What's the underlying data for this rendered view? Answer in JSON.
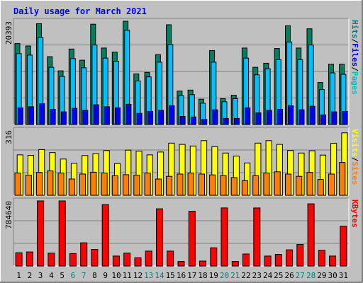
{
  "chart_data": {
    "type": "bar",
    "title": "Daily usage for March 2021",
    "title_color": "#0000ff",
    "background": "#c0c0c0",
    "plot_background": "#c0c0c0",
    "grid": true,
    "days": [
      1,
      2,
      3,
      4,
      5,
      6,
      7,
      8,
      9,
      10,
      11,
      12,
      13,
      14,
      15,
      16,
      17,
      18,
      19,
      20,
      21,
      22,
      23,
      24,
      25,
      26,
      27,
      28,
      29,
      30,
      31
    ],
    "weekend_days": [
      6,
      7,
      13,
      14,
      20,
      21,
      27,
      28
    ],
    "day_label_color": "#000000",
    "weekend_label_color": "#008080",
    "panels": [
      {
        "id": "hits",
        "ymax_label": "20393",
        "ymax": 20393,
        "side_labels": [
          {
            "text": "Hits",
            "color": "#008080"
          },
          {
            "text": "/",
            "color": "#000000"
          },
          {
            "text": "Files",
            "color": "#0000ff"
          },
          {
            "text": "/",
            "color": "#000000"
          },
          {
            "text": "Pages",
            "color": "#00c0c0"
          }
        ],
        "series": [
          {
            "name": "Hits",
            "color": "#008060",
            "values": [
              16000,
              15500,
              19900,
              13400,
              10600,
              14900,
              12700,
              19800,
              15100,
              14300,
              20393,
              10000,
              10300,
              13800,
              19700,
              6600,
              6800,
              5000,
              14600,
              5100,
              5800,
              15100,
              11300,
              12100,
              15000,
              19500,
              15100,
              18900,
              8300,
              11900
            ]
          },
          {
            "name": "Files",
            "color": "#00c0ff",
            "values": [
              14000,
              13700,
              17200,
              11300,
              9500,
              13000,
              11200,
              15700,
              13100,
              12500,
              18600,
              8600,
              9400,
              12300,
              15800,
              5700,
              5900,
              4200,
              12300,
              4500,
              5100,
              13100,
              9800,
              11000,
              12800,
              16300,
              12800,
              15700,
              6900,
              10200
            ]
          },
          {
            "name": "Pages",
            "color": "#0000ff",
            "values": [
              3300,
              3500,
              4100,
              3000,
              2500,
              3200,
              2800,
              3900,
              3500,
              3300,
              4000,
              2200,
              2600,
              2800,
              3700,
              1600,
              1500,
              1000,
              2900,
              1200,
              1200,
              3300,
              2300,
              2800,
              3000,
              3700,
              2900,
              3600,
              1900,
              2500
            ]
          }
        ],
        "extra_day31": {
          "Hits": 11900,
          "Files": 9900,
          "Pages": 2600
        }
      },
      {
        "id": "visits",
        "ymax_label": "316",
        "ymax": 316,
        "side_labels": [
          {
            "text": "Visits",
            "color": "#ffff00"
          },
          {
            "text": "/",
            "color": "#000000"
          },
          {
            "text": "Sites",
            "color": "#ff8000"
          }
        ],
        "series": [
          {
            "name": "Visits",
            "color": "#ffff00",
            "values": [
              196,
              194,
              222,
              207,
              176,
              155,
              193,
              202,
              217,
              154,
              219,
              214,
              196,
              210,
              253,
              247,
              239,
              265,
              236,
              205,
              190,
              157,
              253,
              265,
              247,
              217,
              205,
              216,
              195,
              252,
              303
            ]
          },
          {
            "name": "Sites",
            "color": "#ff8000",
            "values": [
              108,
              98,
              111,
              118,
              108,
              79,
              103,
              112,
              108,
              95,
              100,
              98,
              108,
              79,
              92,
              103,
              108,
              103,
              99,
              96,
              86,
              71,
              95,
              108,
              114,
              103,
              92,
              111,
              77,
              103,
              159
            ]
          }
        ]
      },
      {
        "id": "kbytes",
        "ymax_label": "784640",
        "ymax": 784640,
        "side_labels": [
          {
            "text": "KBytes",
            "color": "#ff0000"
          }
        ],
        "series": [
          {
            "name": "KBytes",
            "color": "#ff0000",
            "values": [
              160000,
              170000,
              784640,
              155000,
              784640,
              150000,
              280000,
              200000,
              740000,
              120000,
              155000,
              100000,
              180000,
              690000,
              180000,
              55000,
              660000,
              60000,
              220000,
              700000,
              55000,
              145000,
              700000,
              120000,
              140000,
              195000,
              260000,
              750000,
              190000,
              120000,
              480000
            ]
          }
        ]
      }
    ]
  }
}
